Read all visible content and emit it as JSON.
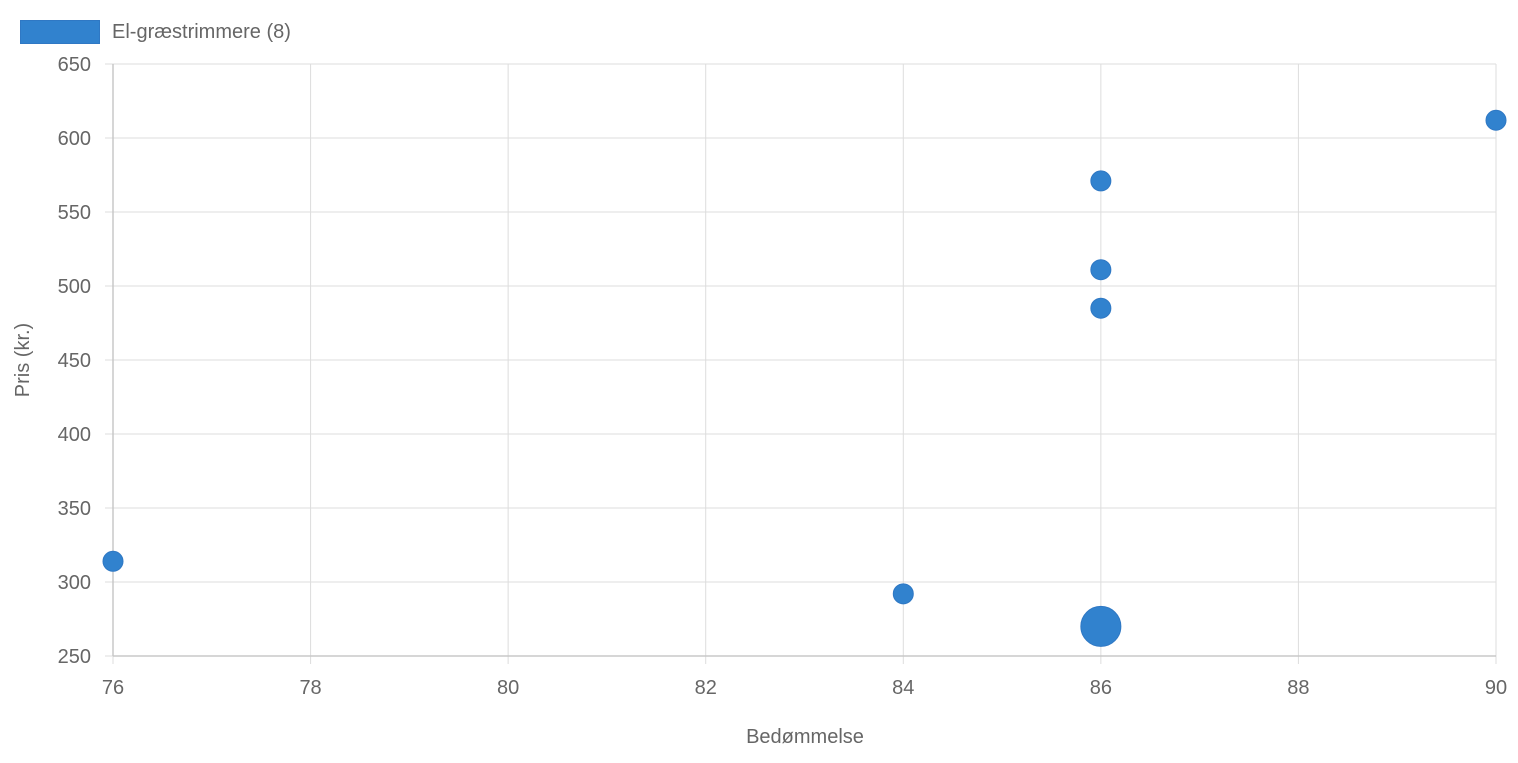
{
  "chart_data": {
    "type": "scatter",
    "title": "",
    "xlabel": "Bedømmelse",
    "ylabel": "Pris (kr.)",
    "xlim": [
      76,
      90
    ],
    "ylim": [
      250,
      650
    ],
    "xticks": [
      76,
      78,
      80,
      82,
      84,
      86,
      88,
      90
    ],
    "yticks": [
      250,
      300,
      350,
      400,
      450,
      500,
      550,
      600,
      650
    ],
    "grid": true,
    "legend_position": "top-left",
    "series": [
      {
        "name": "El-græstrimmere (8)",
        "color": "#3182ce",
        "points": [
          {
            "x": 76,
            "y": 314,
            "size": 1
          },
          {
            "x": 84,
            "y": 292,
            "size": 1
          },
          {
            "x": 86,
            "y": 270,
            "size": 2
          },
          {
            "x": 86,
            "y": 485,
            "size": 1
          },
          {
            "x": 86,
            "y": 511,
            "size": 1
          },
          {
            "x": 86,
            "y": 571,
            "size": 1
          },
          {
            "x": 90,
            "y": 612,
            "size": 1
          }
        ]
      }
    ]
  }
}
